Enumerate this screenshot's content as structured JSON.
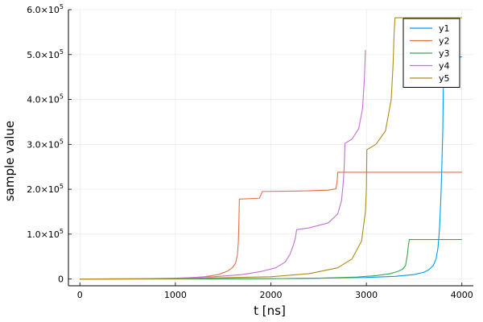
{
  "chart_data": {
    "type": "line",
    "title": "",
    "xlabel": "t [ns]",
    "ylabel": "sample value",
    "xlim": [
      -120,
      4120
    ],
    "ylim": [
      -15000,
      600000
    ],
    "grid": true,
    "legend_position": "top-right",
    "x_ticks": [
      {
        "value": 0,
        "label": "0"
      },
      {
        "value": 1000,
        "label": "1000"
      },
      {
        "value": 2000,
        "label": "2000"
      },
      {
        "value": 3000,
        "label": "3000"
      },
      {
        "value": 4000,
        "label": "4000"
      }
    ],
    "y_ticks": [
      {
        "value": 0,
        "mantissa": "0",
        "exp": ""
      },
      {
        "value": 100000,
        "mantissa": "1.0×10",
        "exp": "5"
      },
      {
        "value": 200000,
        "mantissa": "2.0×10",
        "exp": "5"
      },
      {
        "value": 300000,
        "mantissa": "3.0×10",
        "exp": "5"
      },
      {
        "value": 400000,
        "mantissa": "4.0×10",
        "exp": "5"
      },
      {
        "value": 500000,
        "mantissa": "5.0×10",
        "exp": "5"
      },
      {
        "value": 600000,
        "mantissa": "6.0×10",
        "exp": "5"
      }
    ],
    "series": [
      {
        "name": "y1",
        "color": "#009AFA",
        "points": [
          [
            0,
            0
          ],
          [
            1000,
            300
          ],
          [
            2000,
            900
          ],
          [
            2500,
            1800
          ],
          [
            3000,
            3500
          ],
          [
            3300,
            6000
          ],
          [
            3500,
            10000
          ],
          [
            3600,
            15000
          ],
          [
            3650,
            20000
          ],
          [
            3700,
            30000
          ],
          [
            3730,
            45000
          ],
          [
            3750,
            70000
          ],
          [
            3765,
            110000
          ],
          [
            3780,
            180000
          ],
          [
            3790,
            250000
          ],
          [
            3800,
            330000
          ],
          [
            3805,
            420000
          ],
          [
            3810,
            490000
          ],
          [
            4000,
            495000
          ]
        ]
      },
      {
        "name": "y2",
        "color": "#E36F47",
        "points": [
          [
            0,
            0
          ],
          [
            800,
            700
          ],
          [
            1100,
            2000
          ],
          [
            1300,
            5000
          ],
          [
            1450,
            10000
          ],
          [
            1550,
            18000
          ],
          [
            1600,
            26000
          ],
          [
            1630,
            35000
          ],
          [
            1650,
            55000
          ],
          [
            1660,
            85000
          ],
          [
            1665,
            125000
          ],
          [
            1670,
            178000
          ],
          [
            1880,
            180000
          ],
          [
            1900,
            190000
          ],
          [
            1910,
            195000
          ],
          [
            2300,
            196000
          ],
          [
            2600,
            198000
          ],
          [
            2680,
            201000
          ],
          [
            2695,
            220000
          ],
          [
            2700,
            238000
          ],
          [
            4000,
            238000
          ]
        ]
      },
      {
        "name": "y3",
        "color": "#3EA44E",
        "points": [
          [
            0,
            0
          ],
          [
            1000,
            200
          ],
          [
            2000,
            900
          ],
          [
            2500,
            2000
          ],
          [
            2900,
            4500
          ],
          [
            3100,
            7500
          ],
          [
            3250,
            12000
          ],
          [
            3330,
            17000
          ],
          [
            3380,
            22000
          ],
          [
            3410,
            30000
          ],
          [
            3430,
            55000
          ],
          [
            3440,
            75000
          ],
          [
            3450,
            88000
          ],
          [
            4000,
            88000
          ]
        ]
      },
      {
        "name": "y4",
        "color": "#C271D2",
        "points": [
          [
            0,
            0
          ],
          [
            600,
            700
          ],
          [
            1000,
            2000
          ],
          [
            1400,
            5000
          ],
          [
            1700,
            10000
          ],
          [
            1900,
            17000
          ],
          [
            2050,
            25000
          ],
          [
            2150,
            38000
          ],
          [
            2200,
            55000
          ],
          [
            2230,
            72000
          ],
          [
            2255,
            90000
          ],
          [
            2270,
            110000
          ],
          [
            2400,
            114000
          ],
          [
            2600,
            125000
          ],
          [
            2700,
            145000
          ],
          [
            2740,
            175000
          ],
          [
            2760,
            220000
          ],
          [
            2770,
            260000
          ],
          [
            2775,
            302000
          ],
          [
            2850,
            312000
          ],
          [
            2920,
            335000
          ],
          [
            2960,
            380000
          ],
          [
            2980,
            450000
          ],
          [
            2990,
            510000
          ]
        ]
      },
      {
        "name": "y5",
        "color": "#AC8D18",
        "points": [
          [
            0,
            0
          ],
          [
            1000,
            800
          ],
          [
            2000,
            5000
          ],
          [
            2400,
            12000
          ],
          [
            2700,
            25000
          ],
          [
            2850,
            45000
          ],
          [
            2950,
            85000
          ],
          [
            2990,
            150000
          ],
          [
            3000,
            200000
          ],
          [
            3005,
            288000
          ],
          [
            3100,
            300000
          ],
          [
            3200,
            330000
          ],
          [
            3260,
            400000
          ],
          [
            3280,
            480000
          ],
          [
            3290,
            545000
          ],
          [
            3300,
            582000
          ],
          [
            4000,
            582000
          ]
        ]
      }
    ]
  }
}
